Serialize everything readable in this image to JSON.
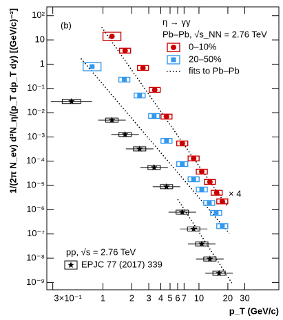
{
  "chart_data": {
    "type": "scatter",
    "xlabel": "p_T (GeV/c)",
    "ylabel": "1/(2π N_ev) d²N_η/(p_T dp_T dy) [(GeV/c)⁻²]",
    "xscale": "log",
    "yscale": "log",
    "xlim": [
      0.26,
      68
    ],
    "ylim": [
      5e-10,
      230
    ],
    "xticks": [
      {
        "value": 0.3,
        "label": "3×10⁻¹"
      },
      1,
      2,
      3,
      4,
      5,
      6,
      7,
      10,
      20,
      30
    ],
    "yticks": [
      {
        "value": 1e-09,
        "label": "10⁻⁹"
      },
      {
        "value": 1e-08,
        "label": "10⁻⁸"
      },
      {
        "value": 1e-07,
        "label": "10⁻⁷"
      },
      {
        "value": 1e-06,
        "label": "10⁻⁶"
      },
      {
        "value": 1e-05,
        "label": "10⁻⁵"
      },
      {
        "value": 0.0001,
        "label": "10⁻⁴"
      },
      {
        "value": 0.001,
        "label": "10⁻³"
      },
      {
        "value": 0.01,
        "label": "10⁻²"
      },
      {
        "value": 0.1,
        "label": "10⁻¹"
      },
      1,
      10,
      {
        "value": 100,
        "label": "10²"
      }
    ],
    "annotations": [
      "(b)",
      "η → γγ",
      "Pb–Pb, √s_NN = 2.76 TeV",
      "× 4",
      "pp, √s = 2.76 TeV"
    ],
    "series": [
      {
        "name": "0–10%",
        "color": "#cc0000",
        "marker": "circle",
        "x": [
          1.24,
          1.7,
          2.61,
          3.46,
          4.59,
          6.7,
          8.8,
          10.7,
          13.0,
          15.3,
          17.5
        ],
        "values": [
          14,
          3.6,
          0.7,
          0.087,
          0.0069,
          0.00054,
          0.00013,
          3.7e-05,
          1.4e-05,
          5e-06,
          2.2e-06
        ]
      },
      {
        "name": "20–50%",
        "color": "#3399ee",
        "marker": "square",
        "x": [
          0.77,
          1.67,
          2.41,
          3.41,
          4.59,
          6.7,
          8.8,
          10.7,
          12.8,
          15.1,
          17.5
        ],
        "values": [
          0.79,
          0.23,
          0.051,
          0.0073,
          0.00069,
          7.6e-05,
          1.8e-05,
          6.8e-06,
          1.9e-06,
          7.4e-07,
          2.1e-07
        ]
      },
      {
        "name": "EPJC 77 (2017) 339",
        "color": "#000000",
        "marker": "star",
        "x": [
          0.47,
          1.24,
          1.7,
          2.41,
          3.41,
          4.59,
          6.7,
          8.8,
          10.7,
          13.0,
          16.2
        ],
        "values": [
          0.029,
          0.0049,
          0.00126,
          0.00032,
          5.5e-05,
          8.9e-06,
          7.9e-07,
          1.6e-07,
          3.9e-08,
          9.3e-09,
          2.4e-09
        ]
      }
    ],
    "fits": {
      "name": "fits to Pb–Pb",
      "lines": [
        {
          "x": [
            0.97,
            19.7
          ],
          "values": [
            33,
            1.4e-06
          ]
        },
        {
          "x": [
            0.59,
            20.7
          ],
          "values": [
            1.7,
            1.05e-07
          ]
        },
        {
          "x": [
            6.0,
            22
          ],
          "values": [
            2.7e-06,
            9.5e-10
          ]
        }
      ]
    }
  }
}
